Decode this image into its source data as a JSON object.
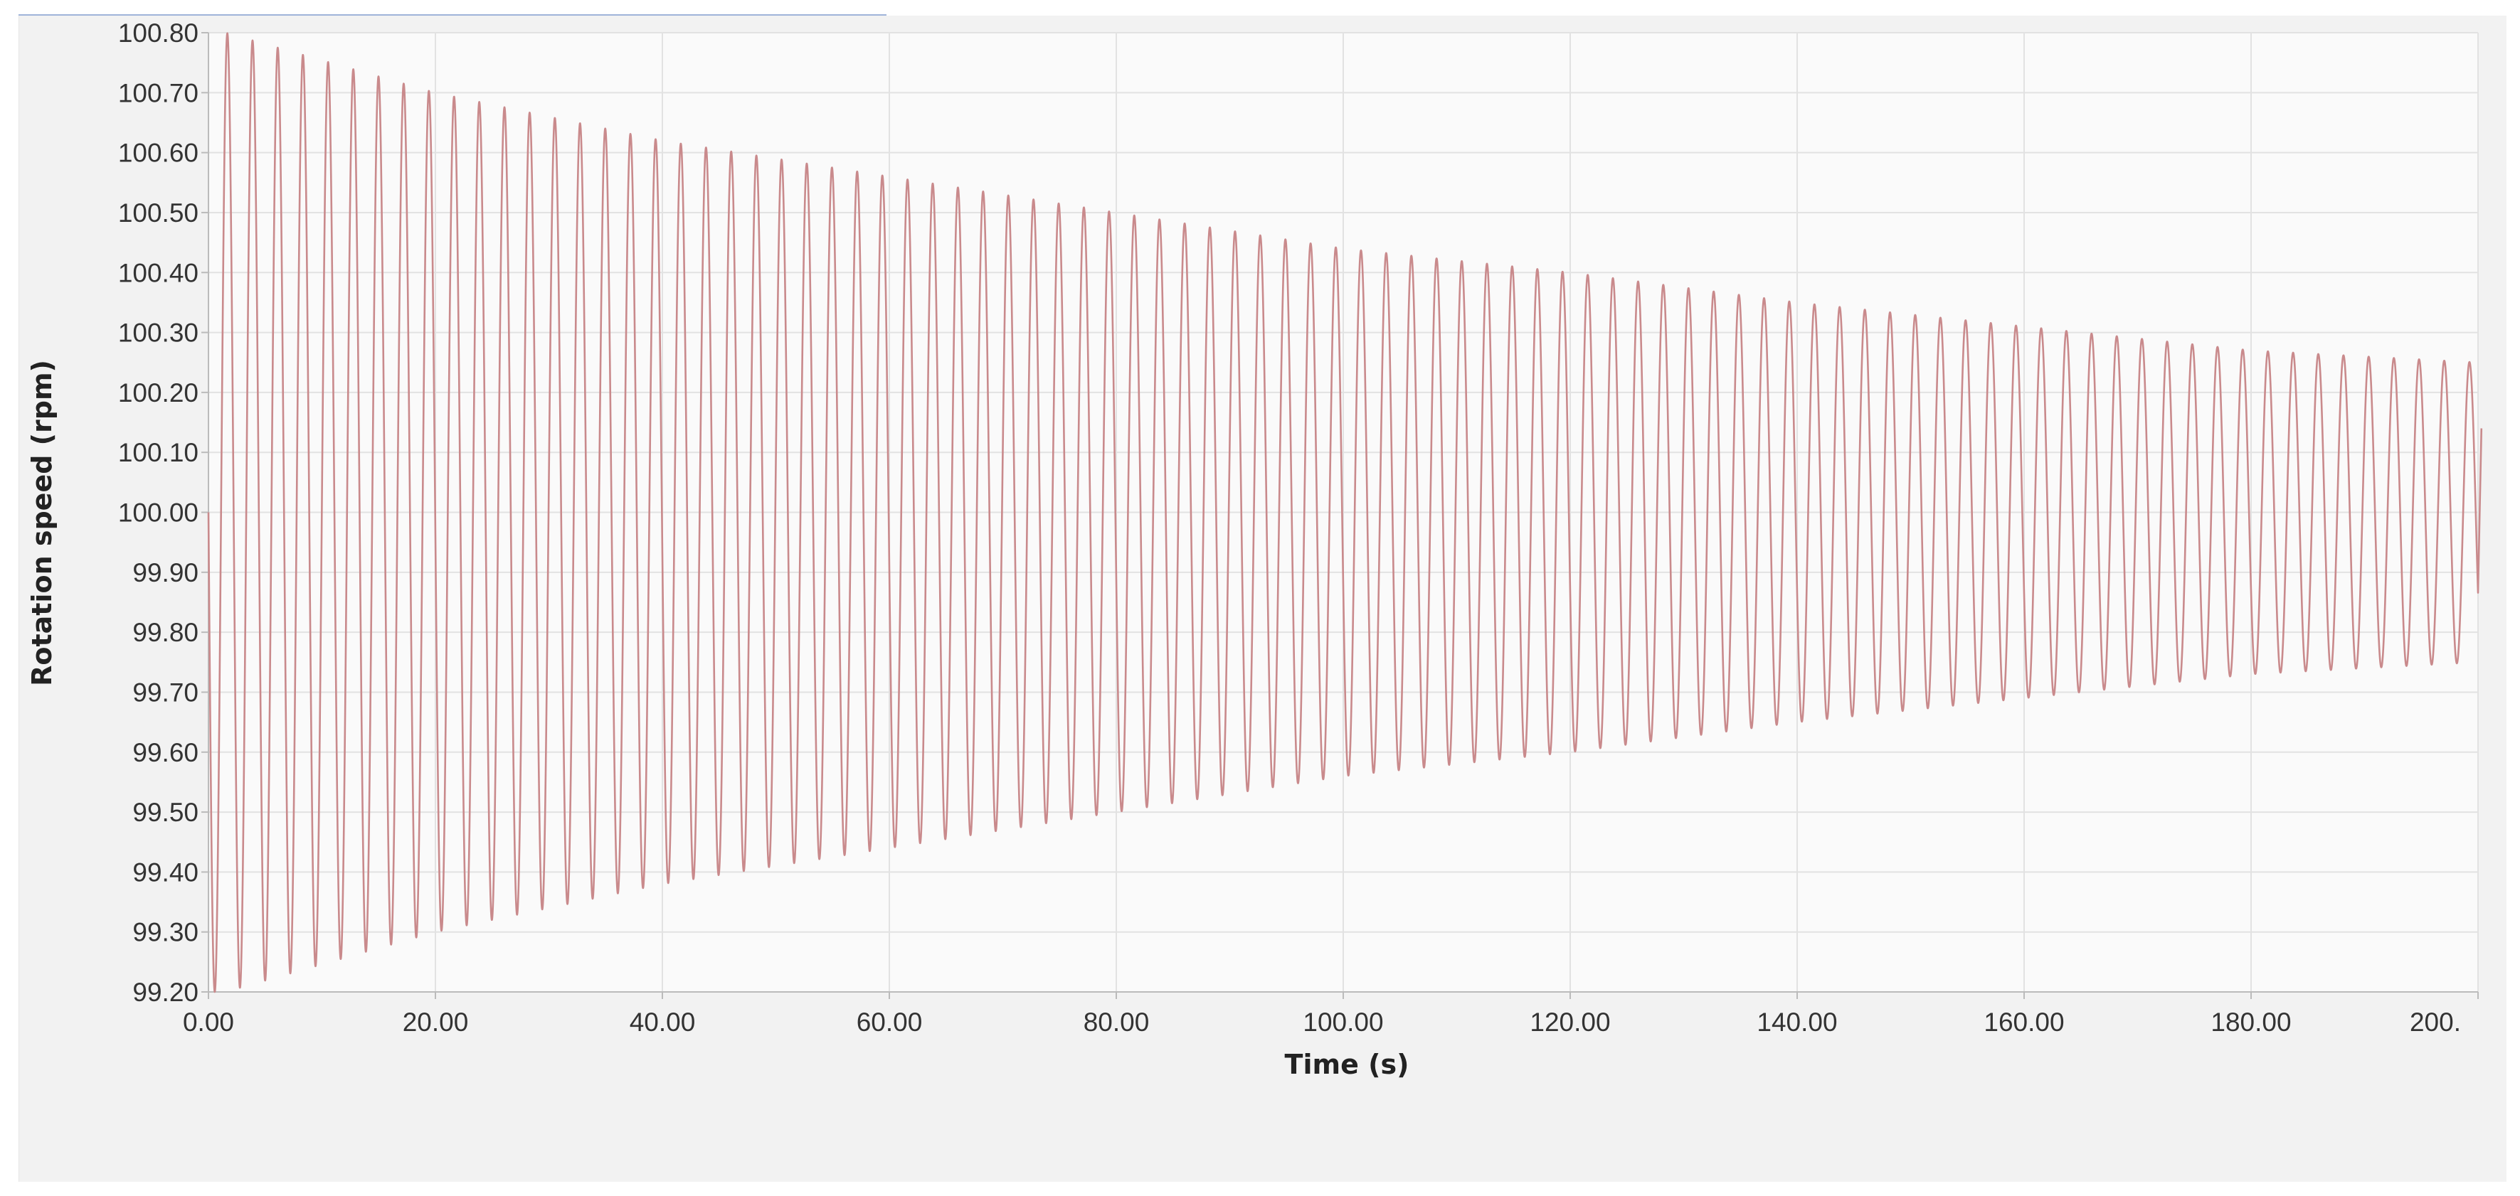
{
  "chart_data": {
    "type": "line",
    "title": "",
    "xlabel": "Time (s)",
    "ylabel": "Rotation speed (rpm)",
    "xlim": [
      0,
      200
    ],
    "ylim": [
      99.2,
      100.8
    ],
    "grid": true,
    "legend": "none",
    "x_ticks": [
      "0.00",
      "20.00",
      "40.00",
      "60.00",
      "80.00",
      "100.00",
      "120.00",
      "140.00",
      "160.00",
      "180.00",
      "200."
    ],
    "y_ticks": [
      "99.20",
      "99.30",
      "99.40",
      "99.50",
      "99.60",
      "99.70",
      "99.80",
      "99.90",
      "100.00",
      "100.10",
      "100.20",
      "100.30",
      "100.40",
      "100.50",
      "100.60",
      "100.70",
      "100.80"
    ],
    "series": [
      {
        "color": "#c98a8c",
        "mean": 100.0,
        "period_s": 2.22,
        "start_phase": "sin",
        "envelope": [
          {
            "t": 1.5,
            "amplitude": 0.8
          },
          {
            "t": 20,
            "amplitude": 0.7
          },
          {
            "t": 40,
            "amplitude": 0.62
          },
          {
            "t": 60,
            "amplitude": 0.56
          },
          {
            "t": 80,
            "amplitude": 0.5
          },
          {
            "t": 100,
            "amplitude": 0.44
          },
          {
            "t": 120,
            "amplitude": 0.4
          },
          {
            "t": 140,
            "amplitude": 0.35
          },
          {
            "t": 160,
            "amplitude": 0.31
          },
          {
            "t": 180,
            "amplitude": 0.27
          },
          {
            "t": 200,
            "amplitude": 0.25
          }
        ],
        "end_value": 100.14
      }
    ]
  },
  "colors": {
    "panel_background": "#f2f2f2",
    "plot_background": "#fafafa",
    "grid": "#e2e2e2",
    "axis": "#bbbbbb",
    "line": "#c98a8c"
  }
}
